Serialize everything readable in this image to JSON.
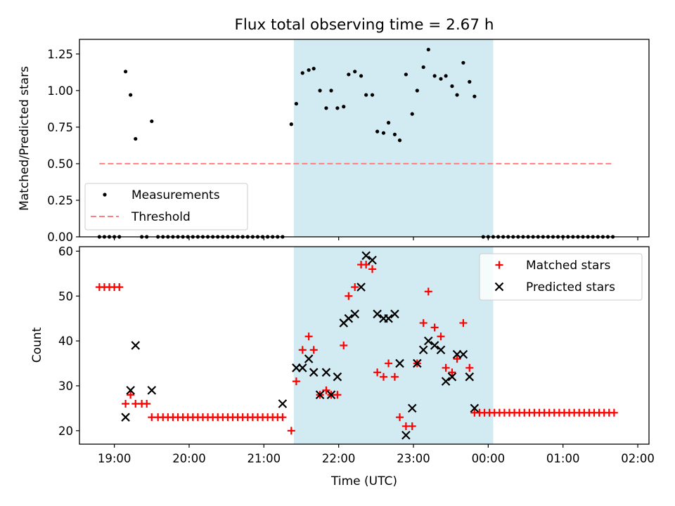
{
  "figure": {
    "title": "Flux total observing time = 2.67 h"
  },
  "chart_data": [
    {
      "type": "scatter",
      "panel": "top",
      "ylabel": "Matched/Predicted stars",
      "ylim": [
        0,
        1.35
      ],
      "yticks": [
        "0.00",
        "0.25",
        "0.50",
        "0.75",
        "1.00",
        "1.25"
      ],
      "xlim": [
        "18:32",
        "02:09"
      ],
      "shaded_region": {
        "x_start": "21:24",
        "x_end": "00:04",
        "color": "#add8e6"
      },
      "legend": {
        "location": "lower left",
        "entries": [
          "Measurements",
          "Threshold"
        ]
      },
      "series": [
        {
          "name": "Measurements",
          "marker": "dot",
          "color": "#000000",
          "points": [
            [
              "18:48",
              0
            ],
            [
              "18:52",
              0
            ],
            [
              "18:56",
              0
            ],
            [
              "19:00",
              0
            ],
            [
              "19:04",
              0
            ],
            [
              "19:09",
              1.13
            ],
            [
              "19:13",
              0.97
            ],
            [
              "19:17",
              0.67
            ],
            [
              "19:22",
              0
            ],
            [
              "19:26",
              0
            ],
            [
              "19:30",
              0.79
            ],
            [
              "19:35",
              0
            ],
            [
              "19:39",
              0
            ],
            [
              "19:43",
              0
            ],
            [
              "19:47",
              0
            ],
            [
              "19:51",
              0
            ],
            [
              "19:55",
              0
            ],
            [
              "19:59",
              0
            ],
            [
              "20:03",
              0
            ],
            [
              "20:07",
              0
            ],
            [
              "20:11",
              0
            ],
            [
              "20:15",
              0
            ],
            [
              "20:19",
              0
            ],
            [
              "20:23",
              0
            ],
            [
              "20:27",
              0
            ],
            [
              "20:31",
              0
            ],
            [
              "20:35",
              0
            ],
            [
              "20:39",
              0
            ],
            [
              "20:43",
              0
            ],
            [
              "20:47",
              0
            ],
            [
              "20:51",
              0
            ],
            [
              "20:55",
              0
            ],
            [
              "20:59",
              0
            ],
            [
              "21:03",
              0
            ],
            [
              "21:07",
              0
            ],
            [
              "21:11",
              0
            ],
            [
              "21:15",
              0
            ],
            [
              "21:22",
              0.77
            ],
            [
              "21:26",
              0.91
            ],
            [
              "21:31",
              1.12
            ],
            [
              "21:36",
              1.14
            ],
            [
              "21:40",
              1.15
            ],
            [
              "21:45",
              1.0
            ],
            [
              "21:50",
              0.88
            ],
            [
              "21:54",
              1.0
            ],
            [
              "21:59",
              0.88
            ],
            [
              "22:04",
              0.89
            ],
            [
              "22:08",
              1.11
            ],
            [
              "22:13",
              1.13
            ],
            [
              "22:18",
              1.1
            ],
            [
              "22:22",
              0.97
            ],
            [
              "22:27",
              0.97
            ],
            [
              "22:31",
              0.72
            ],
            [
              "22:36",
              0.71
            ],
            [
              "22:40",
              0.78
            ],
            [
              "22:45",
              0.7
            ],
            [
              "22:49",
              0.66
            ],
            [
              "22:54",
              1.11
            ],
            [
              "22:59",
              0.84
            ],
            [
              "23:03",
              1.0
            ],
            [
              "23:08",
              1.16
            ],
            [
              "23:12",
              1.28
            ],
            [
              "23:17",
              1.1
            ],
            [
              "23:22",
              1.08
            ],
            [
              "23:26",
              1.1
            ],
            [
              "23:31",
              1.03
            ],
            [
              "23:35",
              0.97
            ],
            [
              "23:40",
              1.19
            ],
            [
              "23:45",
              1.06
            ],
            [
              "23:49",
              0.96
            ],
            [
              "23:56",
              0
            ],
            [
              "24:00",
              0
            ],
            [
              "24:04",
              0
            ],
            [
              "24:08",
              0
            ],
            [
              "24:12",
              0
            ],
            [
              "24:16",
              0
            ],
            [
              "24:20",
              0
            ],
            [
              "24:24",
              0
            ],
            [
              "24:28",
              0
            ],
            [
              "24:32",
              0
            ],
            [
              "24:36",
              0
            ],
            [
              "24:40",
              0
            ],
            [
              "24:44",
              0
            ],
            [
              "24:48",
              0
            ],
            [
              "24:52",
              0
            ],
            [
              "24:56",
              0
            ],
            [
              "25:00",
              0
            ],
            [
              "25:04",
              0
            ],
            [
              "25:08",
              0
            ],
            [
              "25:12",
              0
            ],
            [
              "25:16",
              0
            ],
            [
              "25:20",
              0
            ],
            [
              "25:24",
              0
            ],
            [
              "25:28",
              0
            ],
            [
              "25:32",
              0
            ],
            [
              "25:36",
              0
            ],
            [
              "25:40",
              0
            ]
          ]
        },
        {
          "name": "Threshold",
          "type": "line",
          "style": "dashed",
          "color": "#ff7f7f",
          "points": [
            [
              "18:48",
              0.5
            ],
            [
              "25:40",
              0.5
            ]
          ]
        }
      ]
    },
    {
      "type": "scatter",
      "panel": "bottom",
      "xlabel": "Time (UTC)",
      "ylabel": "Count",
      "ylim": [
        17,
        61
      ],
      "yticks": [
        "20",
        "30",
        "40",
        "50",
        "60"
      ],
      "xlim": [
        "18:32",
        "02:09"
      ],
      "xticks": [
        "19:00",
        "20:00",
        "21:00",
        "22:00",
        "23:00",
        "00:00",
        "01:00",
        "02:00"
      ],
      "shaded_region": {
        "x_start": "21:24",
        "x_end": "00:04",
        "color": "#add8e6"
      },
      "legend": {
        "location": "upper right",
        "entries": [
          "Matched stars",
          "Predicted stars"
        ]
      },
      "series": [
        {
          "name": "Matched stars",
          "marker": "plus",
          "color": "#ff0000",
          "points": [
            [
              "18:48",
              52
            ],
            [
              "18:52",
              52
            ],
            [
              "18:56",
              52
            ],
            [
              "19:00",
              52
            ],
            [
              "19:04",
              52
            ],
            [
              "19:09",
              26
            ],
            [
              "19:13",
              28
            ],
            [
              "19:17",
              26
            ],
            [
              "19:22",
              26
            ],
            [
              "19:26",
              26
            ],
            [
              "19:30",
              23
            ],
            [
              "19:35",
              23
            ],
            [
              "19:39",
              23
            ],
            [
              "19:43",
              23
            ],
            [
              "19:47",
              23
            ],
            [
              "19:51",
              23
            ],
            [
              "19:55",
              23
            ],
            [
              "19:59",
              23
            ],
            [
              "20:03",
              23
            ],
            [
              "20:07",
              23
            ],
            [
              "20:11",
              23
            ],
            [
              "20:15",
              23
            ],
            [
              "20:19",
              23
            ],
            [
              "20:23",
              23
            ],
            [
              "20:27",
              23
            ],
            [
              "20:31",
              23
            ],
            [
              "20:35",
              23
            ],
            [
              "20:39",
              23
            ],
            [
              "20:43",
              23
            ],
            [
              "20:47",
              23
            ],
            [
              "20:51",
              23
            ],
            [
              "20:55",
              23
            ],
            [
              "20:59",
              23
            ],
            [
              "21:03",
              23
            ],
            [
              "21:07",
              23
            ],
            [
              "21:11",
              23
            ],
            [
              "21:15",
              23
            ],
            [
              "21:22",
              20
            ],
            [
              "21:26",
              31
            ],
            [
              "21:31",
              38
            ],
            [
              "21:36",
              41
            ],
            [
              "21:40",
              38
            ],
            [
              "21:45",
              28
            ],
            [
              "21:50",
              29
            ],
            [
              "21:54",
              28
            ],
            [
              "21:59",
              28
            ],
            [
              "22:04",
              39
            ],
            [
              "22:08",
              50
            ],
            [
              "22:13",
              52
            ],
            [
              "22:18",
              57
            ],
            [
              "22:22",
              57
            ],
            [
              "22:27",
              56
            ],
            [
              "22:31",
              33
            ],
            [
              "22:36",
              32
            ],
            [
              "22:40",
              35
            ],
            [
              "22:45",
              32
            ],
            [
              "22:49",
              23
            ],
            [
              "22:54",
              21
            ],
            [
              "22:59",
              21
            ],
            [
              "23:03",
              35
            ],
            [
              "23:08",
              44
            ],
            [
              "23:12",
              51
            ],
            [
              "23:17",
              43
            ],
            [
              "23:22",
              41
            ],
            [
              "23:26",
              34
            ],
            [
              "23:31",
              33
            ],
            [
              "23:35",
              36
            ],
            [
              "23:40",
              44
            ],
            [
              "23:45",
              34
            ],
            [
              "23:49",
              24
            ],
            [
              "23:53",
              24
            ],
            [
              "23:57",
              24
            ],
            [
              "24:01",
              24
            ],
            [
              "24:05",
              24
            ],
            [
              "24:09",
              24
            ],
            [
              "24:13",
              24
            ],
            [
              "24:17",
              24
            ],
            [
              "24:21",
              24
            ],
            [
              "24:25",
              24
            ],
            [
              "24:29",
              24
            ],
            [
              "24:33",
              24
            ],
            [
              "24:37",
              24
            ],
            [
              "24:41",
              24
            ],
            [
              "24:45",
              24
            ],
            [
              "24:49",
              24
            ],
            [
              "24:53",
              24
            ],
            [
              "24:57",
              24
            ],
            [
              "25:01",
              24
            ],
            [
              "25:05",
              24
            ],
            [
              "25:09",
              24
            ],
            [
              "25:13",
              24
            ],
            [
              "25:17",
              24
            ],
            [
              "25:21",
              24
            ],
            [
              "25:25",
              24
            ],
            [
              "25:29",
              24
            ],
            [
              "25:33",
              24
            ],
            [
              "25:37",
              24
            ],
            [
              "25:41",
              24
            ]
          ]
        },
        {
          "name": "Predicted stars",
          "marker": "x",
          "color": "#000000",
          "points": [
            [
              "19:09",
              23
            ],
            [
              "19:13",
              29
            ],
            [
              "19:17",
              39
            ],
            [
              "19:30",
              29
            ],
            [
              "21:15",
              26
            ],
            [
              "21:26",
              34
            ],
            [
              "21:31",
              34
            ],
            [
              "21:36",
              36
            ],
            [
              "21:40",
              33
            ],
            [
              "21:45",
              28
            ],
            [
              "21:50",
              33
            ],
            [
              "21:54",
              28
            ],
            [
              "21:59",
              32
            ],
            [
              "22:04",
              44
            ],
            [
              "22:08",
              45
            ],
            [
              "22:13",
              46
            ],
            [
              "22:18",
              52
            ],
            [
              "22:22",
              59
            ],
            [
              "22:27",
              58
            ],
            [
              "22:31",
              46
            ],
            [
              "22:36",
              45
            ],
            [
              "22:40",
              45
            ],
            [
              "22:45",
              46
            ],
            [
              "22:49",
              35
            ],
            [
              "22:54",
              19
            ],
            [
              "22:59",
              25
            ],
            [
              "23:03",
              35
            ],
            [
              "23:08",
              38
            ],
            [
              "23:12",
              40
            ],
            [
              "23:17",
              39
            ],
            [
              "23:22",
              38
            ],
            [
              "23:26",
              31
            ],
            [
              "23:31",
              32
            ],
            [
              "23:35",
              37
            ],
            [
              "23:40",
              37
            ],
            [
              "23:45",
              32
            ],
            [
              "23:49",
              25
            ]
          ]
        }
      ]
    }
  ]
}
